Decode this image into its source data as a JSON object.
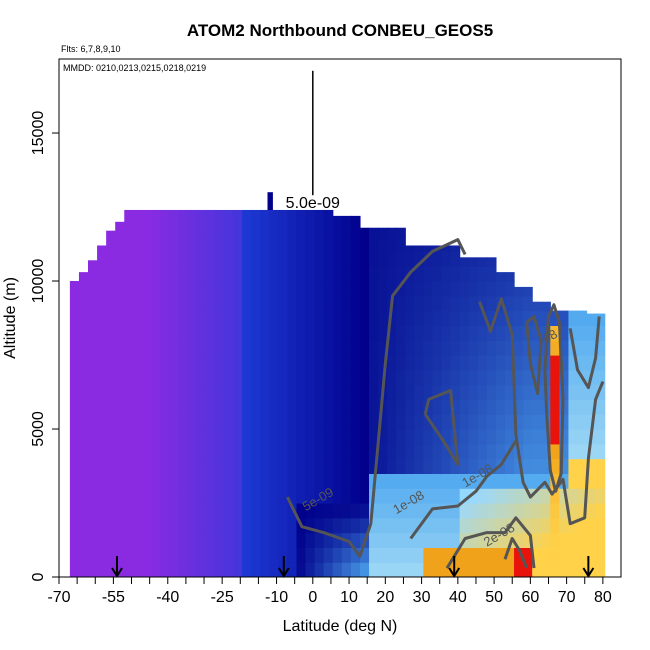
{
  "chart_data": {
    "type": "heatmap",
    "title": "ATOM2 Northbound CONBEU_GEOS5",
    "subtitle_flights": "Flts: 6,7,8,9,10",
    "subtitle_dates": "MMDD: 0210,0213,0215,0218,0219",
    "xlabel": "Latitude (deg N)",
    "ylabel": "Altitude (m)",
    "xlim": [
      -70,
      85
    ],
    "ylim": [
      0,
      17500
    ],
    "x_ticks": [
      -70,
      -55,
      -40,
      -25,
      -10,
      0,
      10,
      20,
      30,
      40,
      50,
      60,
      70,
      80
    ],
    "x_tick_labels": [
      "-70",
      "-55",
      "-40",
      "-25",
      "-10",
      "0",
      "10",
      "20",
      "30",
      "40",
      "50",
      "60",
      "70",
      "80"
    ],
    "y_ticks": [
      0,
      5000,
      10000,
      15000
    ],
    "y_tick_labels": [
      "0",
      "5000",
      "10000",
      "15000"
    ],
    "scale_bar_label": "5.0e-09",
    "scale_bar_lat": 0,
    "scale_bar_alt_range": [
      12900,
      17100
    ],
    "flight_marker_lats": [
      -54,
      -8,
      39,
      76
    ],
    "contour_labels": [
      {
        "text": "5e-09",
        "lat": 2,
        "alt": 2500
      },
      {
        "text": "1e-08",
        "lat": 27,
        "alt": 2400
      },
      {
        "text": "1e-08",
        "lat": 46,
        "alt": 3300
      },
      {
        "text": "2e-08",
        "lat": 52,
        "alt": 1300
      },
      {
        "text": "08",
        "lat": 66,
        "alt": 8000
      }
    ],
    "colors": {
      "purple": "#8a2be2",
      "dark_blue": "#00008b",
      "blue": "#1f3bd6",
      "light_blue": "#4fa8ef",
      "cyan": "#9fd8f5",
      "yellow": "#ffd24a",
      "orange": "#f0a21a",
      "red": "#e8140c",
      "contour": "#555555"
    }
  }
}
